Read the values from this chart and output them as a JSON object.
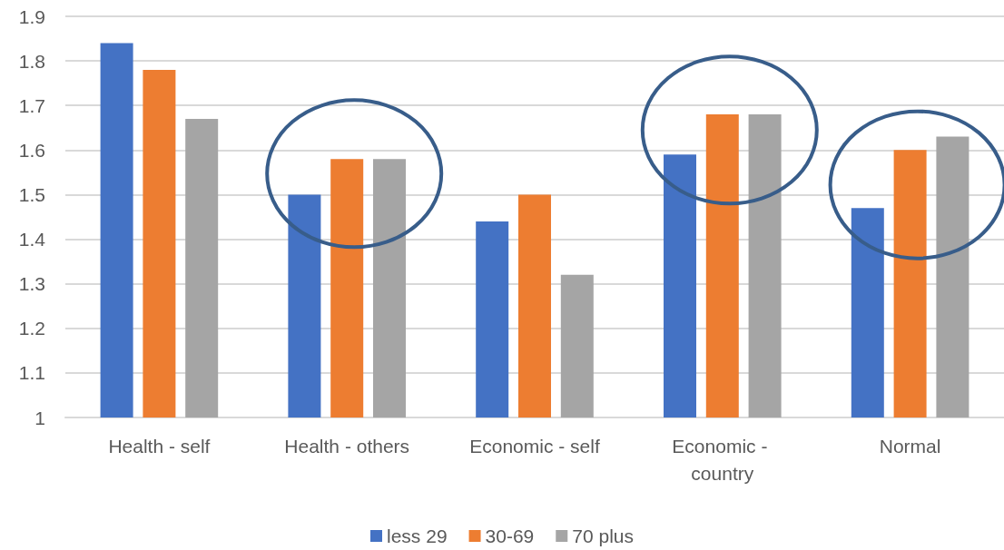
{
  "chart_data": {
    "type": "bar",
    "categories": [
      "Health - self",
      "Health - others",
      "Economic - self",
      "Economic - country",
      "Normal"
    ],
    "series": [
      {
        "name": "less 29",
        "color": "#4472c4",
        "values": [
          1.84,
          1.5,
          1.44,
          1.59,
          1.47
        ]
      },
      {
        "name": "30-69",
        "color": "#ed7d31",
        "values": [
          1.78,
          1.58,
          1.5,
          1.68,
          1.6
        ]
      },
      {
        "name": "70 plus",
        "color": "#a5a5a5",
        "values": [
          1.67,
          1.58,
          1.32,
          1.68,
          1.63
        ]
      }
    ],
    "ylim": [
      1,
      1.9
    ],
    "yticks": [
      1,
      1.1,
      1.2,
      1.3,
      1.4,
      1.5,
      1.6,
      1.7,
      1.8,
      1.9
    ],
    "grid": "y",
    "legend": "bottom"
  }
}
